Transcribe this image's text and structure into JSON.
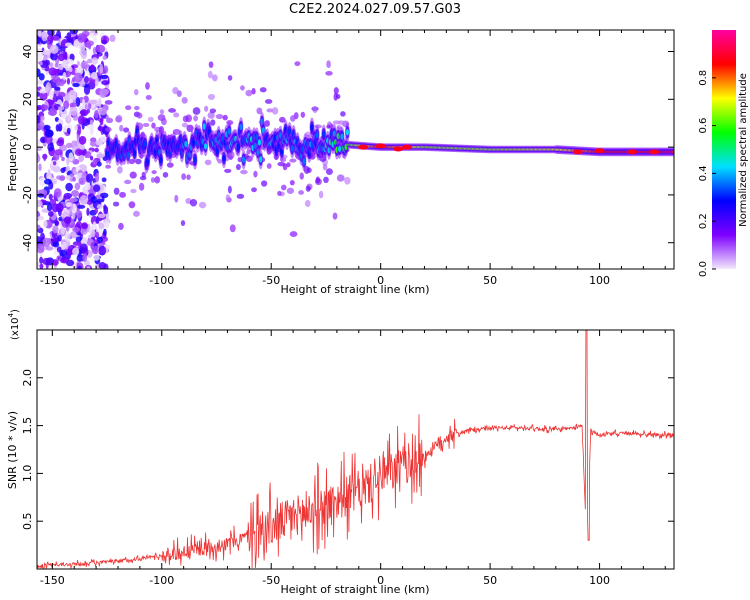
{
  "title": "C2E2.2024.027.09.57.G03",
  "chart_data": [
    {
      "type": "heatmap",
      "xlabel": "Height of straight line (km)",
      "ylabel": "Frequency (Hz)",
      "xlim": [
        -157,
        134
      ],
      "ylim": [
        -51,
        49
      ],
      "xticks": [
        -150,
        -100,
        -50,
        0,
        50,
        100
      ],
      "yticks": [
        -40,
        -20,
        0,
        20,
        40
      ],
      "colorbar": {
        "label": "Normalized spectral amplitude",
        "range": [
          0,
          1
        ],
        "ticks": [
          "0.0",
          "0.2",
          "0.4",
          "0.6",
          "0.8"
        ],
        "tick_values": [
          0.0,
          0.2,
          0.4,
          0.6,
          0.8
        ],
        "colors": [
          "#f2e8fb",
          "#7d00ff",
          "#0000ff",
          "#00e0ff",
          "#00ff00",
          "#ffff00",
          "#ff0000",
          "#ff00a0"
        ]
      },
      "ridge": {
        "description_points_x": [
          -122,
          -100,
          -80,
          -60,
          -45,
          -35,
          -25,
          -15,
          0,
          20,
          50,
          80,
          100,
          134
        ],
        "center_freq": [
          -1,
          0,
          2,
          2,
          3,
          0,
          0,
          1,
          0,
          0,
          -1,
          -1,
          -2,
          -2
        ],
        "amplitude": [
          0.3,
          0.35,
          0.4,
          0.45,
          0.4,
          0.35,
          0.5,
          0.6,
          0.85,
          0.65,
          0.65,
          0.7,
          0.85,
          0.9
        ]
      }
    },
    {
      "type": "line",
      "xlabel": "Height of straight line (km)",
      "ylabel": "SNR (10 * v/v)",
      "multiplier_label": "(x10",
      "multiplier_exp": "4",
      "multiplier_close": ")",
      "xlim": [
        -157,
        134
      ],
      "ylim": [
        0,
        2.5
      ],
      "xticks": [
        -150,
        -100,
        -50,
        0,
        50,
        100
      ],
      "yticks": [
        0.5,
        1.0,
        1.5,
        2.0
      ],
      "ytick_labels": [
        "0.5",
        "1.0",
        "1.5",
        "2.0"
      ],
      "color": "#ee3333",
      "series": [
        {
          "x": [
            -157,
            -140,
            -120,
            -100,
            -85,
            -70,
            -60,
            -50,
            -40,
            -30,
            -20,
            -10,
            0,
            10,
            20,
            30,
            40,
            50,
            60,
            70,
            80,
            88,
            92,
            94,
            96,
            100,
            110,
            120,
            134
          ],
          "y": [
            0.03,
            0.05,
            0.08,
            0.14,
            0.2,
            0.26,
            0.35,
            0.45,
            0.55,
            0.62,
            0.72,
            0.82,
            0.95,
            1.08,
            1.18,
            1.38,
            1.45,
            1.47,
            1.48,
            1.47,
            1.46,
            1.47,
            1.5,
            0.3,
            1.45,
            1.4,
            1.42,
            1.41,
            1.4
          ]
        }
      ]
    }
  ]
}
